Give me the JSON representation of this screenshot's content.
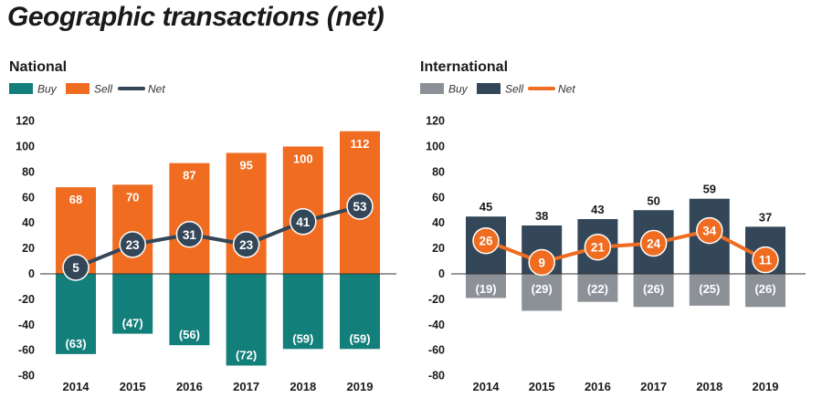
{
  "page": {
    "title": "Geographic transactions (net)"
  },
  "colors": {
    "teal": "#137F7A",
    "orange": "#EF6C21",
    "dark_navy": "#344758",
    "gray": "#8C9198",
    "axis": "#333333"
  },
  "chart_data": [
    {
      "type": "bar",
      "title": "National",
      "categories": [
        "2014",
        "2015",
        "2016",
        "2017",
        "2018",
        "2019"
      ],
      "series": [
        {
          "name": "Buy",
          "kind": "bar",
          "color": "#137F7A",
          "values": [
            -63,
            -47,
            -56,
            -72,
            -59,
            -59
          ],
          "labels": [
            "(63)",
            "(47)",
            "(56)",
            "(72)",
            "(59)",
            "(59)"
          ]
        },
        {
          "name": "Sell",
          "kind": "bar",
          "color": "#EF6C21",
          "values": [
            68,
            70,
            87,
            95,
            100,
            112
          ],
          "labels": [
            "68",
            "70",
            "87",
            "95",
            "100",
            "112"
          ]
        },
        {
          "name": "Net",
          "kind": "line",
          "color": "#344758",
          "values": [
            5,
            23,
            31,
            23,
            41,
            53
          ],
          "labels": [
            "5",
            "23",
            "31",
            "23",
            "41",
            "53"
          ]
        }
      ],
      "yticks": [
        "120",
        "100",
        "80",
        "60",
        "40",
        "20",
        "0",
        "-20",
        "-40",
        "-60",
        "-80"
      ],
      "ylim": [
        -80,
        120
      ],
      "legend_position": "top-left",
      "grid": false
    },
    {
      "type": "bar",
      "title": "International",
      "categories": [
        "2014",
        "2015",
        "2016",
        "2017",
        "2018",
        "2019"
      ],
      "series": [
        {
          "name": "Buy",
          "kind": "bar",
          "color": "#8C9198",
          "values": [
            -19,
            -29,
            -22,
            -26,
            -25,
            -26
          ],
          "labels": [
            "(19)",
            "(29)",
            "(22)",
            "(26)",
            "(25)",
            "(26)"
          ]
        },
        {
          "name": "Sell",
          "kind": "bar",
          "color": "#344758",
          "values": [
            45,
            38,
            43,
            50,
            59,
            37
          ],
          "labels": [
            "45",
            "38",
            "43",
            "50",
            "59",
            "37"
          ]
        },
        {
          "name": "Net",
          "kind": "line",
          "color": "#EF6C21",
          "values": [
            26,
            9,
            21,
            24,
            34,
            11
          ],
          "labels": [
            "26",
            "9",
            "21",
            "24",
            "34",
            "11"
          ]
        }
      ],
      "yticks": [
        "120",
        "100",
        "80",
        "60",
        "40",
        "20",
        "0",
        "-20",
        "-40",
        "-60",
        "-80"
      ],
      "ylim": [
        -80,
        120
      ],
      "legend_position": "top-left",
      "grid": false
    }
  ]
}
